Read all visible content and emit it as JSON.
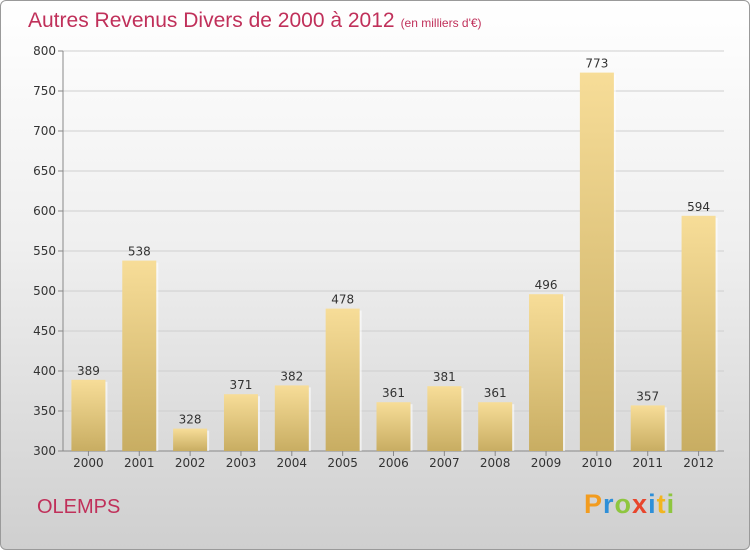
{
  "header": {
    "title": "Autres Revenus Divers de 2000 à 2012",
    "unit": "(en milliers d'€)"
  },
  "footer": {
    "place": "OLEMPS",
    "logo": {
      "letters": [
        "P",
        "r",
        "o",
        "x",
        "i",
        "t",
        "i"
      ],
      "colors": [
        "#f29c1f",
        "#2e8fd8",
        "#8ec63f",
        "#e8452c",
        "#2e8fd8",
        "#f2b51f",
        "#8ec63f"
      ]
    }
  },
  "chart_data": {
    "type": "bar",
    "title": "Autres Revenus Divers de 2000 à 2012",
    "subtitle": "(en milliers d'€)",
    "categories": [
      "2000",
      "2001",
      "2002",
      "2003",
      "2004",
      "2005",
      "2006",
      "2007",
      "2008",
      "2009",
      "2010",
      "2011",
      "2012"
    ],
    "values": [
      389,
      538,
      328,
      371,
      382,
      478,
      361,
      381,
      361,
      496,
      773,
      357,
      594
    ],
    "ylim": [
      300,
      800
    ],
    "yticks": [
      300,
      350,
      400,
      450,
      500,
      550,
      600,
      650,
      700,
      750,
      800
    ],
    "grid": true,
    "bar_color_top": "#f7dd98",
    "bar_color_bottom": "#c8ad62"
  }
}
